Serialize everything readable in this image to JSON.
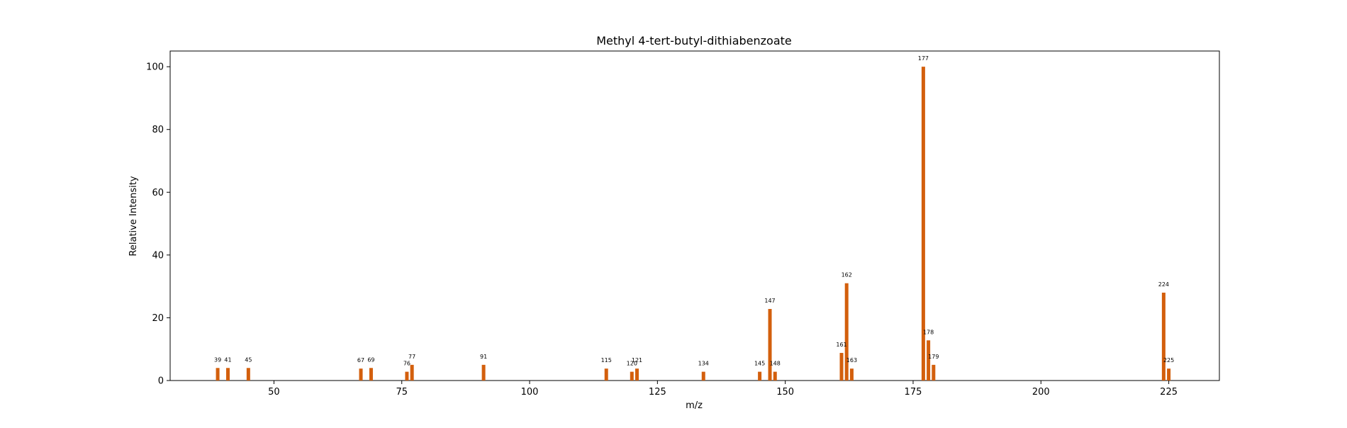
{
  "chart_data": {
    "type": "bar",
    "title": "Methyl 4-tert-butyl-dithiabenzoate",
    "xlabel": "m/z",
    "ylabel": "Relative Intensity",
    "xlim": [
      29.7,
      234.9
    ],
    "ylim": [
      0,
      105
    ],
    "xticks": [
      50,
      75,
      100,
      125,
      150,
      175,
      200,
      225
    ],
    "yticks": [
      0,
      20,
      40,
      60,
      80,
      100
    ],
    "grid": false,
    "legend": "none",
    "bar_color": "#d35f0d",
    "peaks": [
      {
        "x": 39,
        "y": 4,
        "label": "39"
      },
      {
        "x": 41,
        "y": 4,
        "label": "41"
      },
      {
        "x": 45,
        "y": 4,
        "label": "45"
      },
      {
        "x": 67,
        "y": 3.8,
        "label": "67"
      },
      {
        "x": 69,
        "y": 4,
        "label": "69"
      },
      {
        "x": 76,
        "y": 2.8,
        "label": "76"
      },
      {
        "x": 77,
        "y": 5,
        "label": "77"
      },
      {
        "x": 91,
        "y": 5,
        "label": "91"
      },
      {
        "x": 115,
        "y": 3.8,
        "label": "115"
      },
      {
        "x": 120,
        "y": 2.8,
        "label": "120"
      },
      {
        "x": 121,
        "y": 3.8,
        "label": "121"
      },
      {
        "x": 134,
        "y": 2.8,
        "label": "134"
      },
      {
        "x": 145,
        "y": 2.8,
        "label": "145"
      },
      {
        "x": 147,
        "y": 22.8,
        "label": "147"
      },
      {
        "x": 148,
        "y": 2.8,
        "label": "148"
      },
      {
        "x": 161,
        "y": 8.8,
        "label": "161"
      },
      {
        "x": 162,
        "y": 31,
        "label": "162"
      },
      {
        "x": 163,
        "y": 3.8,
        "label": "163"
      },
      {
        "x": 177,
        "y": 100,
        "label": "177"
      },
      {
        "x": 178,
        "y": 12.8,
        "label": "178"
      },
      {
        "x": 179,
        "y": 5,
        "label": "179"
      },
      {
        "x": 224,
        "y": 28,
        "label": "224"
      },
      {
        "x": 225,
        "y": 3.8,
        "label": "225"
      }
    ]
  }
}
